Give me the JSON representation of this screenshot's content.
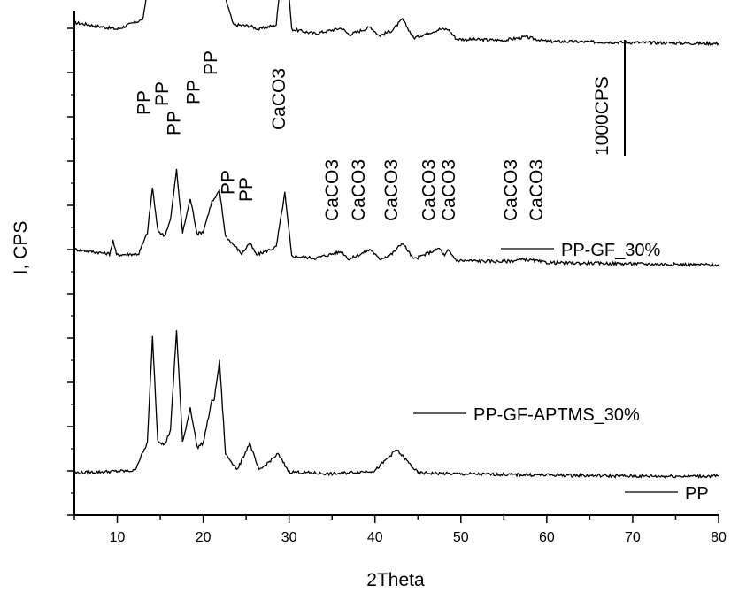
{
  "chart_data": {
    "type": "line",
    "title": "",
    "xlabel": "2Theta",
    "ylabel": "I, CPS",
    "xlim": [
      5,
      80
    ],
    "xticks": [
      10,
      20,
      30,
      40,
      50,
      60,
      70,
      80
    ],
    "yticks_labeled": false,
    "grid": false,
    "legend_placement": "beside each trace, right side",
    "line_color": "#000000",
    "scale_bar": {
      "label": "1000CPS",
      "cps": 1000
    },
    "series": [
      {
        "name": "PP-GF_30%",
        "baseline": 2000,
        "x": [
          5,
          10,
          13,
          13.5,
          14.1,
          14.7,
          15.5,
          16.2,
          16.9,
          17.6,
          18.5,
          19.3,
          20,
          21,
          21.3,
          21.9,
          22.6,
          23.5,
          25.4,
          26.5,
          28.5,
          29.5,
          30.3,
          33,
          36.1,
          37,
          39.5,
          40.5,
          42,
          43.2,
          44.5,
          47.5,
          48.5,
          49.5,
          55,
          57.5,
          60,
          70,
          80
        ],
        "values": [
          2100,
          2040,
          2130,
          2400,
          3020,
          2450,
          2360,
          2520,
          2760,
          2390,
          2790,
          2380,
          2450,
          2770,
          2850,
          2990,
          2320,
          2080,
          2070,
          2040,
          2080,
          2830,
          2040,
          2000,
          2050,
          1990,
          2060,
          1980,
          2030,
          2130,
          1960,
          2040,
          2040,
          1950,
          1940,
          1970,
          1930,
          1920,
          1910
        ]
      },
      {
        "name": "PP-GF-APTMS_30%",
        "baseline": 1000,
        "x": [
          5,
          9.1,
          9.5,
          9.9,
          12.5,
          13.5,
          14.1,
          14.7,
          15.5,
          16.2,
          16.9,
          17.6,
          18.5,
          19.3,
          20,
          21,
          21.3,
          21.9,
          22.6,
          24.5,
          25.4,
          26.2,
          28.5,
          29.5,
          30.3,
          33,
          36.1,
          37,
          39.5,
          40.5,
          42,
          43.2,
          44.5,
          47.5,
          48.1,
          48.5,
          49.5,
          55,
          57.5,
          60,
          70,
          80
        ],
        "values": [
          1050,
          1010,
          1130,
          1000,
          1010,
          1200,
          1610,
          1220,
          1170,
          1320,
          1770,
          1200,
          1510,
          1190,
          1210,
          1480,
          1500,
          1580,
          1170,
          1010,
          1110,
          1000,
          1070,
          1560,
          990,
          970,
          1030,
          960,
          1050,
          960,
          1010,
          1110,
          960,
          1060,
          990,
          1040,
          950,
          940,
          960,
          930,
          920,
          910
        ]
      },
      {
        "name": "PP",
        "baseline": 0,
        "x": [
          5,
          12,
          13.5,
          14.1,
          14.7,
          15.5,
          16.2,
          16.9,
          17.6,
          18.5,
          19.3,
          20,
          21,
          21.3,
          21.9,
          22.6,
          24,
          25.4,
          26.5,
          28.7,
          30,
          35,
          40,
          42.5,
          45,
          50,
          60,
          70,
          80
        ],
        "values": [
          30,
          50,
          300,
          1260,
          330,
          280,
          420,
          1320,
          300,
          620,
          260,
          300,
          680,
          700,
          1040,
          200,
          60,
          300,
          50,
          200,
          40,
          20,
          50,
          240,
          30,
          20,
          10,
          0,
          0
        ]
      }
    ],
    "annotations": [
      {
        "text": "PP",
        "x": 13.8
      },
      {
        "text": "PP",
        "x": 15.9
      },
      {
        "text": "PP",
        "x": 17.3
      },
      {
        "text": "PP",
        "x": 19.6
      },
      {
        "text": "PP",
        "x": 21.6
      },
      {
        "text": "PP",
        "x": 23.6
      },
      {
        "text": "PP",
        "x": 25.7
      },
      {
        "text": "CaCO3",
        "x": 29.5
      },
      {
        "text": "CaCO3",
        "x": 35.7
      },
      {
        "text": "CaCO3",
        "x": 38.8
      },
      {
        "text": "CaCO3",
        "x": 42.6
      },
      {
        "text": "CaCO3",
        "x": 47.0
      },
      {
        "text": "CaCO3",
        "x": 49.3
      },
      {
        "text": "CaCO3",
        "x": 56.5
      },
      {
        "text": "CaCO3",
        "x": 59.5
      }
    ]
  }
}
